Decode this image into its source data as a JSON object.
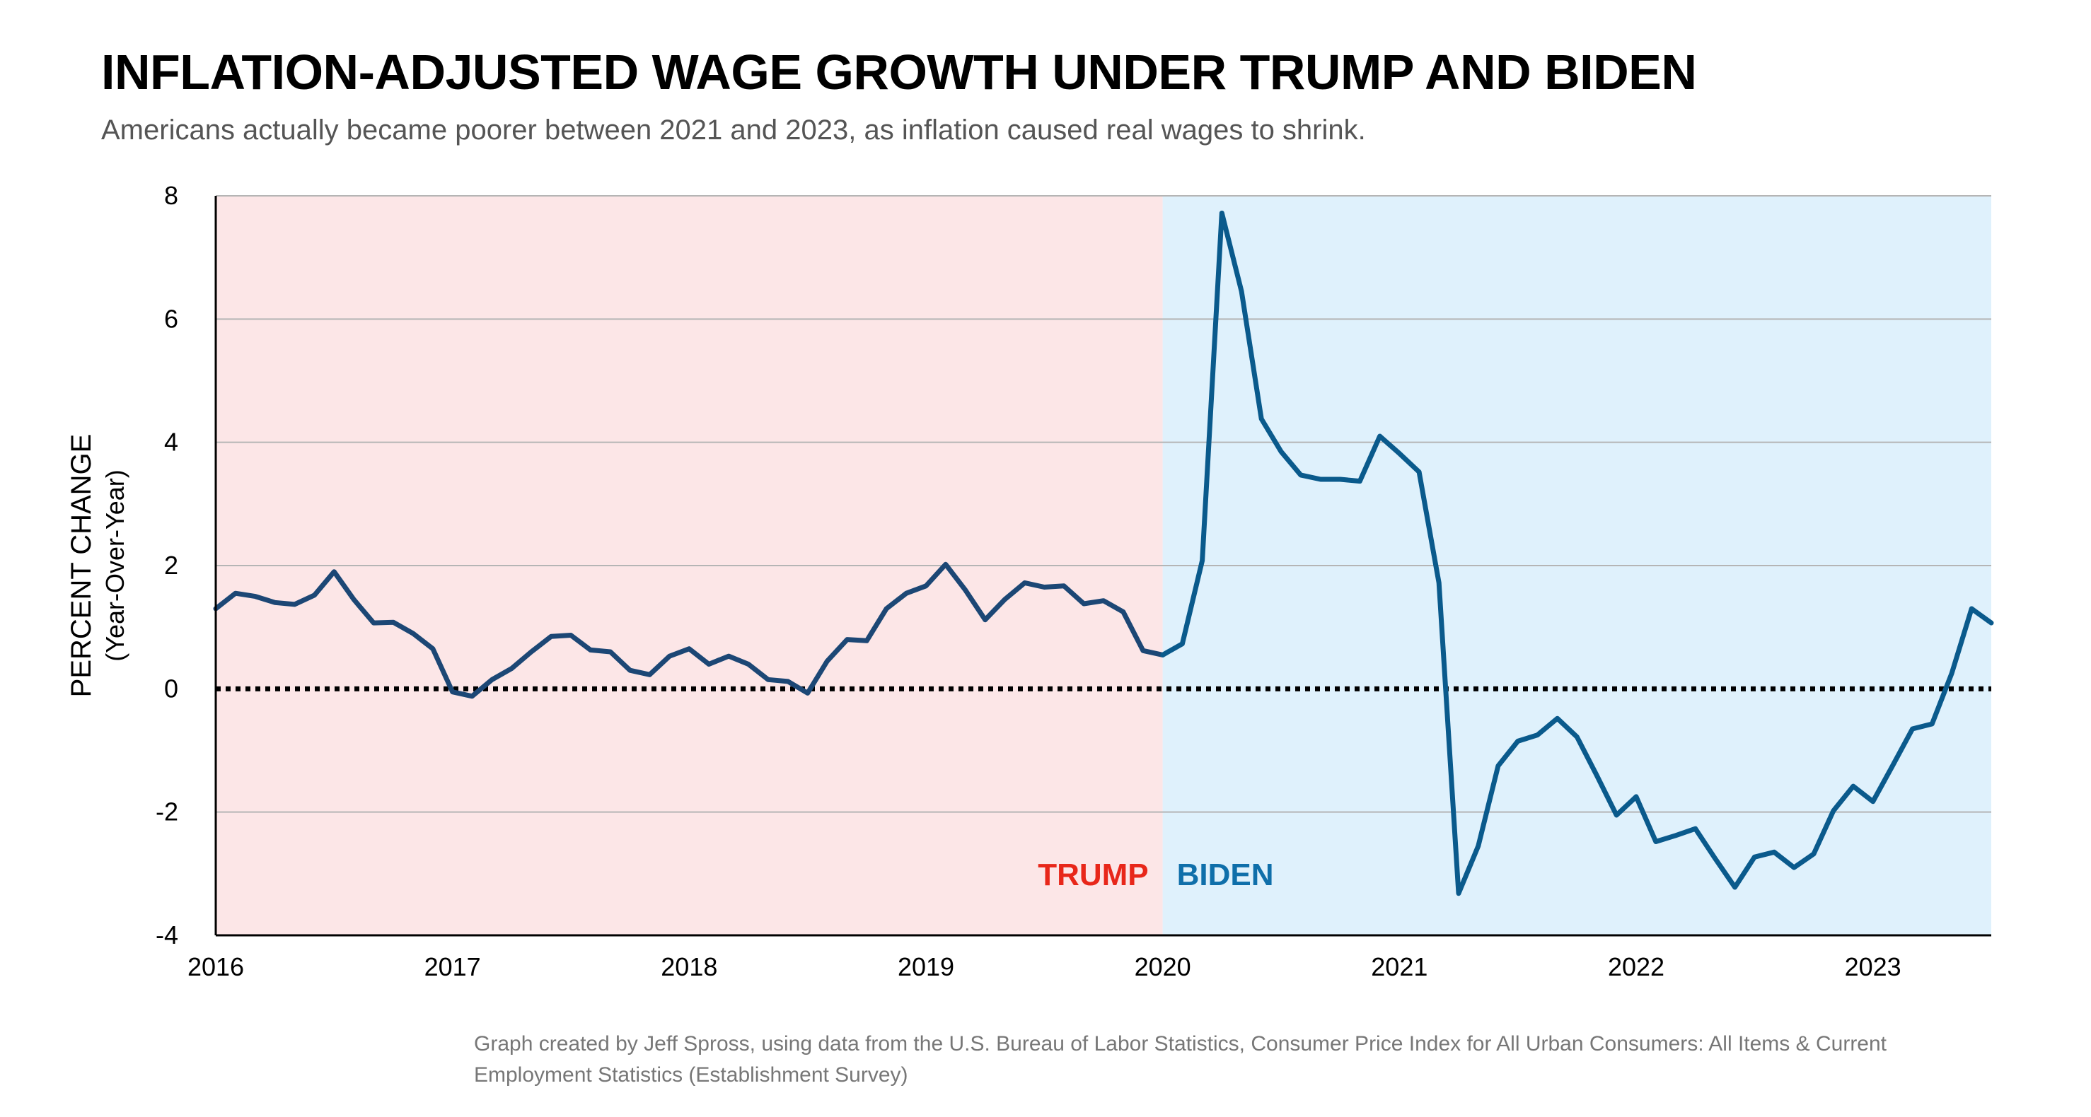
{
  "title": "INFLATION-ADJUSTED WAGE GROWTH UNDER TRUMP AND BIDEN",
  "subtitle": "Americans actually became poorer between 2021 and 2023, as inflation caused real wages to shrink.",
  "footnote": "Graph created by Jeff Spross, using data from the U.S. Bureau of Labor Statistics, Consumer Price Index for All Urban Consumers: All Items & Current Employment Statistics (Establishment Survey)",
  "colors": {
    "trump_region": "#fce6e7",
    "biden_region": "#dff1fc",
    "trump_line": "#1c4775",
    "biden_line": "#0a5a8c",
    "trump_label": "#e8271a",
    "biden_label": "#0f6faa",
    "gridline": "#b5b5b5"
  },
  "chart_data": {
    "type": "line",
    "ylabel": "PERCENT CHANGE",
    "ylabel_sub": "(Year-Over-Year)",
    "xlim": [
      2016.0,
      2023.5
    ],
    "ylim": [
      -4,
      8
    ],
    "yticks": [
      -4,
      -2,
      0,
      2,
      4,
      6,
      8
    ],
    "xticks": [
      "2016",
      "2017",
      "2018",
      "2019",
      "2020",
      "2021",
      "2022",
      "2023"
    ],
    "grid": true,
    "zero_line": "dotted",
    "regions": [
      {
        "label": "TRUMP",
        "start": 2016.0,
        "end": 2020.0
      },
      {
        "label": "BIDEN",
        "start": 2020.0,
        "end": 2023.5
      }
    ],
    "series": [
      {
        "region": "TRUMP",
        "x": [
          2016.0,
          2016.083,
          2016.167,
          2016.25,
          2016.333,
          2016.417,
          2016.5,
          2016.583,
          2016.667,
          2016.75,
          2016.833,
          2016.917,
          2017.0,
          2017.083,
          2017.167,
          2017.25,
          2017.333,
          2017.417,
          2017.5,
          2017.583,
          2017.667,
          2017.75,
          2017.833,
          2017.917,
          2018.0,
          2018.083,
          2018.167,
          2018.25,
          2018.333,
          2018.417,
          2018.5,
          2018.583,
          2018.667,
          2018.75,
          2018.833,
          2018.917,
          2019.0,
          2019.083,
          2019.167,
          2019.25,
          2019.333,
          2019.417,
          2019.5,
          2019.583,
          2019.667,
          2019.75,
          2019.833,
          2019.917,
          2020.0
        ],
        "values": [
          1.3,
          1.55,
          1.5,
          1.4,
          1.37,
          1.52,
          1.9,
          1.45,
          1.07,
          1.08,
          0.9,
          0.65,
          -0.05,
          -0.12,
          0.15,
          0.33,
          0.6,
          0.85,
          0.87,
          0.63,
          0.6,
          0.3,
          0.23,
          0.53,
          0.65,
          0.4,
          0.53,
          0.4,
          0.15,
          0.12,
          -0.07,
          0.45,
          0.8,
          0.78,
          1.3,
          1.55,
          1.67,
          2.02,
          1.6,
          1.12,
          1.45,
          1.72,
          1.65,
          1.67,
          1.38,
          1.43,
          1.25,
          0.62,
          0.55
        ]
      },
      {
        "region": "BIDEN",
        "x": [
          2020.0,
          2020.083,
          2020.167,
          2020.25,
          2020.333,
          2020.417,
          2020.5,
          2020.583,
          2020.667,
          2020.75,
          2020.833,
          2020.917,
          2021.0,
          2021.083,
          2021.167,
          2021.25,
          2021.333,
          2021.417,
          2021.5,
          2021.583,
          2021.667,
          2021.75,
          2021.833,
          2021.917,
          2022.0,
          2022.083,
          2022.167,
          2022.25,
          2022.333,
          2022.417,
          2022.5,
          2022.583,
          2022.667,
          2022.75,
          2022.833,
          2022.917,
          2023.0,
          2023.083,
          2023.167,
          2023.25,
          2023.333,
          2023.417,
          2023.5
        ],
        "values": [
          0.55,
          0.73,
          2.08,
          7.72,
          6.45,
          4.38,
          3.85,
          3.47,
          3.4,
          3.4,
          3.37,
          4.1,
          3.82,
          3.52,
          1.72,
          -3.32,
          -2.55,
          -1.25,
          -0.85,
          -0.75,
          -0.48,
          -0.78,
          -1.4,
          -2.05,
          -1.75,
          -2.48,
          -2.38,
          -2.27,
          -2.75,
          -3.22,
          -2.73,
          -2.65,
          -2.9,
          -2.68,
          -1.98,
          -1.58,
          -1.83,
          -1.25,
          -0.65,
          -0.57,
          0.25,
          1.3,
          1.07
        ]
      }
    ]
  }
}
